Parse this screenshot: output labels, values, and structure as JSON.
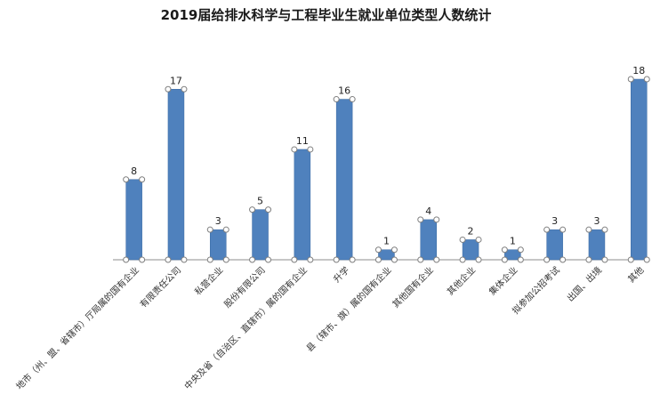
{
  "chart_data": {
    "type": "bar",
    "title": "2019届给排水科学与工程毕业生就业单位类型人数统计",
    "xlabel": "",
    "ylabel": "",
    "ylim": [
      0,
      18
    ],
    "grid": false,
    "legend": "none",
    "color": "#4f81bd",
    "categories": [
      "地市（州、盟、省辖市）厅局属的国有企业",
      "有限责任公司",
      "私营企业",
      "股份有限公司",
      "中央及省（自治区、直辖市）属的国有企业",
      "升学",
      "县（辖市、旗）属的国有企业",
      "其他国有企业",
      "其他企业",
      "集体企业",
      "拟参加公招考试",
      "出国、出境",
      "其他"
    ],
    "values": [
      8,
      17,
      3,
      5,
      11,
      16,
      1,
      4,
      2,
      1,
      3,
      3,
      18
    ]
  }
}
